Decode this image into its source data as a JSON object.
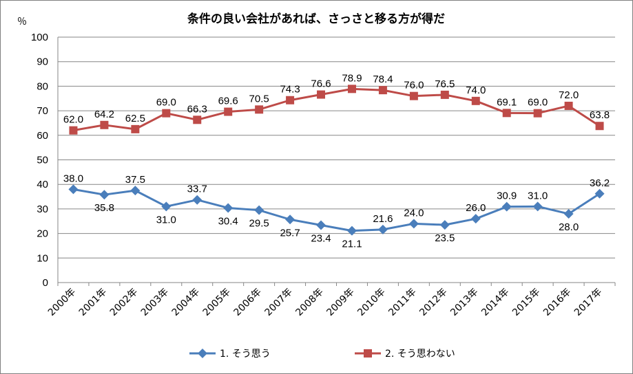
{
  "chart_data": {
    "type": "line",
    "title": "条件の良い会社があれば、さっさと移る方が得だ",
    "ylabel": "％",
    "xlabel": "",
    "ylim": [
      0,
      100
    ],
    "yticks": [
      "0",
      "10",
      "20",
      "30",
      "40",
      "50",
      "60",
      "70",
      "80",
      "90",
      "100"
    ],
    "categories": [
      "2000年",
      "2001年",
      "2002年",
      "2003年",
      "2004年",
      "2005年",
      "2006年",
      "2007年",
      "2008年",
      "2009年",
      "2010年",
      "2011年",
      "2012年",
      "2013年",
      "2014年",
      "2015年",
      "2016年",
      "2017年"
    ],
    "grid": true,
    "legend_position": "bottom",
    "series": [
      {
        "name": "1. そう思う",
        "color": "#4a7ebb",
        "marker": "diamond",
        "values": [
          38.0,
          35.8,
          37.5,
          31.0,
          33.7,
          30.4,
          29.5,
          25.7,
          23.4,
          21.1,
          21.6,
          24.0,
          23.5,
          26.0,
          30.9,
          31.0,
          28.0,
          36.2
        ],
        "labels": [
          "38.0",
          "35.8",
          "37.5",
          "31.0",
          "33.7",
          "30.4",
          "29.5",
          "25.7",
          "23.4",
          "21.1",
          "21.6",
          "24.0",
          "23.5",
          "26.0",
          "30.9",
          "31.0",
          "28.0",
          "36.2"
        ]
      },
      {
        "name": "2. そう思わない",
        "color": "#be4b48",
        "marker": "square",
        "values": [
          62.0,
          64.2,
          62.5,
          69.0,
          66.3,
          69.6,
          70.5,
          74.3,
          76.6,
          78.9,
          78.4,
          76.0,
          76.5,
          74.0,
          69.1,
          69.0,
          72.0,
          63.8
        ],
        "labels": [
          "62.0",
          "64.2",
          "62.5",
          "69.0",
          "66.3",
          "69.6",
          "70.5",
          "74.3",
          "76.6",
          "78.9",
          "78.4",
          "76.0",
          "76.5",
          "74.0",
          "69.1",
          "69.0",
          "72.0",
          "63.8"
        ]
      }
    ]
  }
}
